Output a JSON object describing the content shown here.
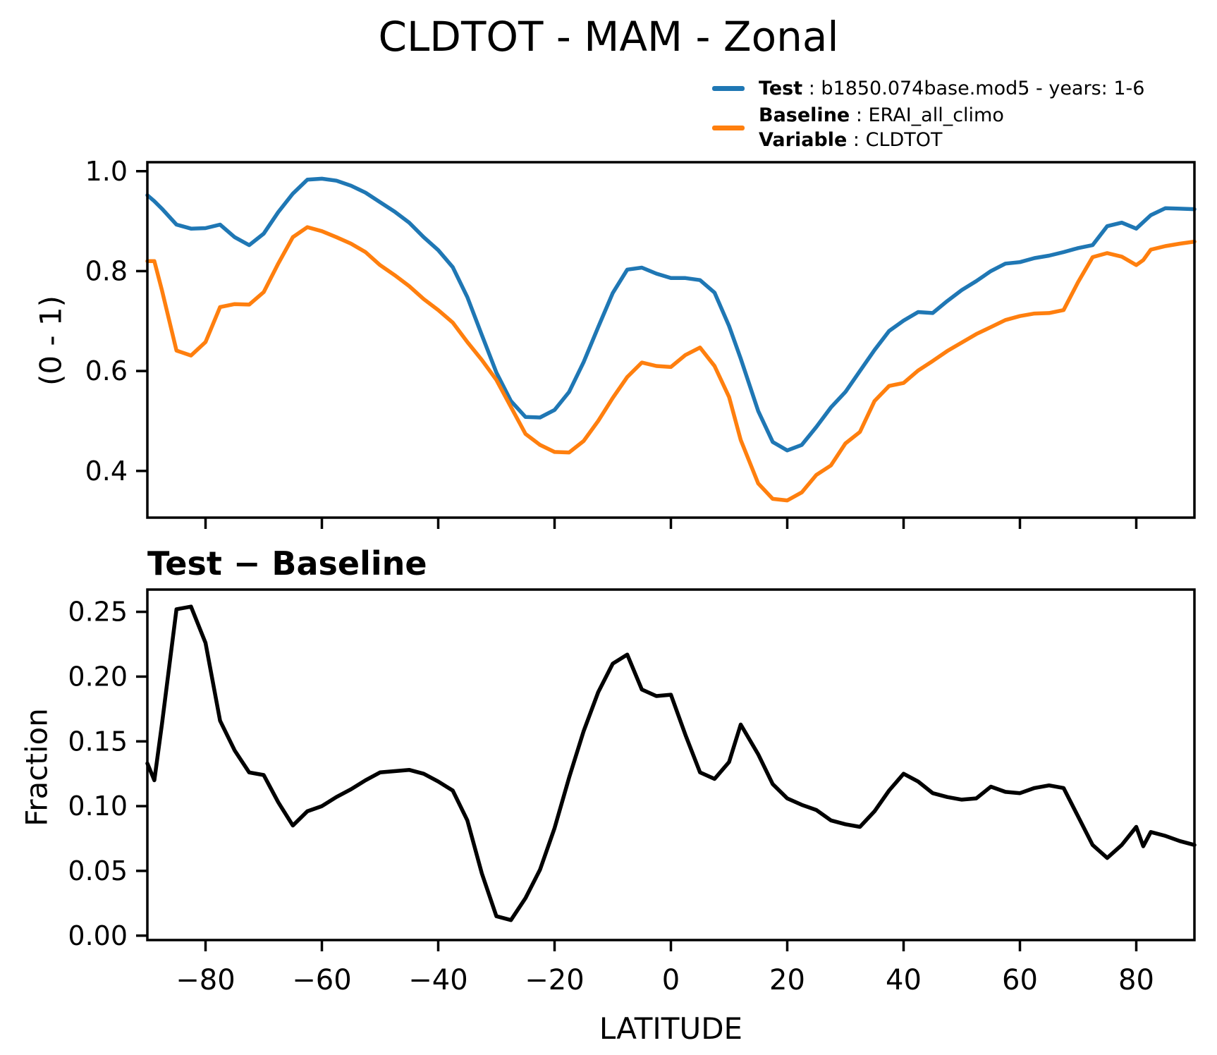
{
  "title": "CLDTOT - MAM - Zonal",
  "legend": {
    "entries": [
      {
        "color": "#1f77b4",
        "lines": [
          {
            "bold": "Test",
            "rest": " : b1850.074base.mod5 - years: 1-6"
          }
        ]
      },
      {
        "color": "#ff7f0e",
        "lines": [
          {
            "bold": "Baseline",
            "rest": " : ERAI_all_climo"
          },
          {
            "bold": "Variable",
            "rest": " : CLDTOT"
          }
        ]
      }
    ]
  },
  "chart_data": {
    "type": "line",
    "x_label": "LATITUDE",
    "xlim": [
      -90,
      90
    ],
    "xticks_labels": [
      "−80",
      "−60",
      "−40",
      "−20",
      "0",
      "20",
      "40",
      "60",
      "80"
    ],
    "xtick_values": [
      -80,
      -60,
      -40,
      -20,
      0,
      20,
      40,
      60,
      80
    ],
    "grid": false,
    "legend_position": "upper-right-outside",
    "latitudes": [
      -90,
      -88.8,
      -87.5,
      -85,
      -82.5,
      -80,
      -77.5,
      -75,
      -72.5,
      -70,
      -67.5,
      -65,
      -62.5,
      -60,
      -57.5,
      -55,
      -52.5,
      -50,
      -47.5,
      -45,
      -42.5,
      -40,
      -37.5,
      -35,
      -32.5,
      -30,
      -27.5,
      -25,
      -22.5,
      -20,
      -17.5,
      -15,
      -12.5,
      -10,
      -7.5,
      -5,
      -2.5,
      0,
      2.5,
      5,
      7.5,
      10,
      12,
      15,
      17.5,
      20,
      22.5,
      25,
      27.5,
      30,
      32.5,
      35,
      37.5,
      40,
      42.5,
      45,
      47.5,
      50,
      52.5,
      55,
      57.5,
      60,
      62.5,
      65,
      67.5,
      70,
      72.5,
      75,
      77.5,
      80,
      81.2,
      82.5,
      85,
      87.5,
      90
    ],
    "top_panel": {
      "ylabel": "(0 - 1)",
      "ylim": [
        0.31,
        1.02
      ],
      "ytick_labels": [
        "1.0",
        "0.8",
        "0.6",
        "0.4"
      ],
      "ytick_values": [
        1.0,
        0.8,
        0.6,
        0.4
      ],
      "series": [
        {
          "name": "Test",
          "color": "#1f77b4",
          "values": [
            0.952,
            0.94,
            0.925,
            0.893,
            0.885,
            0.886,
            0.893,
            0.868,
            0.852,
            0.875,
            0.918,
            0.955,
            0.983,
            0.985,
            0.981,
            0.971,
            0.957,
            0.938,
            0.919,
            0.897,
            0.868,
            0.842,
            0.808,
            0.748,
            0.672,
            0.597,
            0.54,
            0.508,
            0.507,
            0.522,
            0.558,
            0.618,
            0.688,
            0.756,
            0.803,
            0.807,
            0.795,
            0.786,
            0.786,
            0.782,
            0.757,
            0.69,
            0.625,
            0.52,
            0.458,
            0.441,
            0.452,
            0.488,
            0.527,
            0.558,
            0.6,
            0.642,
            0.68,
            0.701,
            0.718,
            0.716,
            0.74,
            0.762,
            0.78,
            0.8,
            0.815,
            0.818,
            0.826,
            0.831,
            0.838,
            0.846,
            0.852,
            0.89,
            0.897,
            0.885,
            0.898,
            0.912,
            0.926,
            0.925,
            0.924
          ]
        },
        {
          "name": "Baseline",
          "color": "#ff7f0e",
          "values": [
            0.82,
            0.82,
            0.762,
            0.641,
            0.631,
            0.658,
            0.728,
            0.734,
            0.733,
            0.758,
            0.815,
            0.868,
            0.888,
            0.88,
            0.868,
            0.855,
            0.838,
            0.812,
            0.792,
            0.77,
            0.744,
            0.722,
            0.697,
            0.658,
            0.622,
            0.582,
            0.528,
            0.474,
            0.452,
            0.438,
            0.437,
            0.46,
            0.5,
            0.546,
            0.588,
            0.617,
            0.61,
            0.608,
            0.632,
            0.647,
            0.61,
            0.548,
            0.462,
            0.375,
            0.344,
            0.341,
            0.357,
            0.392,
            0.411,
            0.455,
            0.478,
            0.54,
            0.57,
            0.576,
            0.601,
            0.62,
            0.64,
            0.657,
            0.674,
            0.688,
            0.702,
            0.71,
            0.715,
            0.716,
            0.722,
            0.778,
            0.828,
            0.836,
            0.829,
            0.812,
            0.822,
            0.843,
            0.85,
            0.855,
            0.859
          ]
        }
      ]
    },
    "bottom_panel": {
      "title": "Test − Baseline",
      "ylabel": "Fraction",
      "ylim": [
        0.0,
        0.267
      ],
      "ytick_labels": [
        "0.25",
        "0.20",
        "0.15",
        "0.10",
        "0.05",
        "0.00"
      ],
      "ytick_values": [
        0.25,
        0.2,
        0.15,
        0.1,
        0.05,
        0.0
      ],
      "series": [
        {
          "name": "Test minus Baseline",
          "color": "#000000",
          "values": [
            0.133,
            0.12,
            0.163,
            0.252,
            0.254,
            0.226,
            0.166,
            0.143,
            0.126,
            0.124,
            0.103,
            0.085,
            0.096,
            0.1,
            0.107,
            0.113,
            0.12,
            0.126,
            0.127,
            0.128,
            0.125,
            0.119,
            0.112,
            0.089,
            0.048,
            0.015,
            0.012,
            0.029,
            0.051,
            0.083,
            0.122,
            0.158,
            0.188,
            0.21,
            0.217,
            0.19,
            0.185,
            0.186,
            0.155,
            0.126,
            0.121,
            0.134,
            0.163,
            0.14,
            0.117,
            0.106,
            0.101,
            0.097,
            0.089,
            0.086,
            0.084,
            0.096,
            0.112,
            0.125,
            0.119,
            0.11,
            0.107,
            0.105,
            0.106,
            0.115,
            0.111,
            0.11,
            0.114,
            0.116,
            0.114,
            0.092,
            0.07,
            0.06,
            0.07,
            0.084,
            0.069,
            0.08,
            0.077,
            0.073,
            0.07
          ]
        }
      ]
    }
  }
}
